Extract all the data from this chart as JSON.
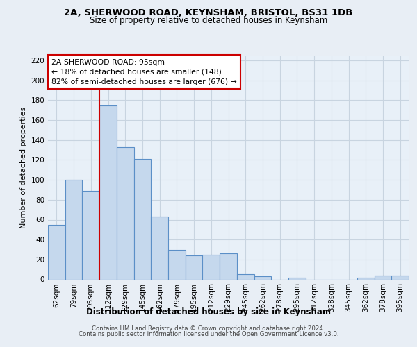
{
  "title": "2A, SHERWOOD ROAD, KEYNSHAM, BRISTOL, BS31 1DB",
  "subtitle": "Size of property relative to detached houses in Keynsham",
  "xlabel": "Distribution of detached houses by size in Keynsham",
  "ylabel": "Number of detached properties",
  "categories": [
    "62sqm",
    "79sqm",
    "95sqm",
    "112sqm",
    "129sqm",
    "145sqm",
    "162sqm",
    "179sqm",
    "195sqm",
    "212sqm",
    "229sqm",
    "245sqm",
    "262sqm",
    "278sqm",
    "295sqm",
    "312sqm",
    "328sqm",
    "345sqm",
    "362sqm",
    "378sqm",
    "395sqm"
  ],
  "values": [
    55,
    100,
    89,
    175,
    133,
    121,
    63,
    30,
    24,
    25,
    26,
    5,
    3,
    0,
    2,
    0,
    0,
    0,
    2,
    4,
    4
  ],
  "bar_color": "#c5d8ed",
  "bar_edge_color": "#5b8fc7",
  "bar_linewidth": 0.8,
  "vline_x_index": 2,
  "vline_color": "#cc0000",
  "annotation_line1": "2A SHERWOOD ROAD: 95sqm",
  "annotation_line2": "← 18% of detached houses are smaller (148)",
  "annotation_line3": "82% of semi-detached houses are larger (676) →",
  "annotation_box_color": "#ffffff",
  "annotation_box_edge_color": "#cc0000",
  "ylim": [
    0,
    225
  ],
  "yticks": [
    0,
    20,
    40,
    60,
    80,
    100,
    120,
    140,
    160,
    180,
    200,
    220
  ],
  "footer_line1": "Contains HM Land Registry data © Crown copyright and database right 2024.",
  "footer_line2": "Contains public sector information licensed under the Open Government Licence v3.0.",
  "bg_color": "#e8eef5",
  "plot_bg_color": "#e8f0f8",
  "grid_color": "#c8d4e0",
  "title_fontsize": 9.5,
  "subtitle_fontsize": 8.5,
  "tick_fontsize": 7.5,
  "ylabel_fontsize": 8.0,
  "xlabel_fontsize": 8.5,
  "footer_fontsize": 6.2
}
